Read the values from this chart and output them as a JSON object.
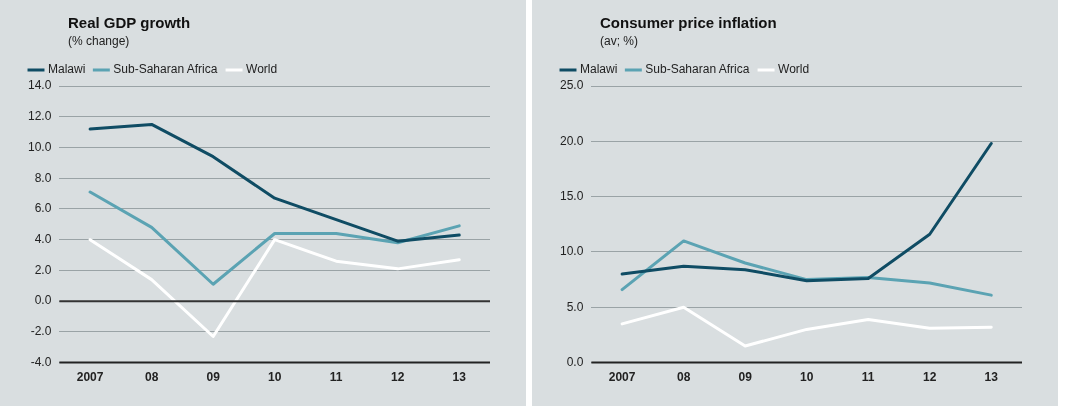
{
  "chart_data": [
    {
      "type": "line",
      "title": "Real GDP growth",
      "subtitle": "(% change)",
      "categories": [
        "2007",
        "08",
        "09",
        "10",
        "11",
        "12",
        "13"
      ],
      "series": [
        {
          "name": "Malawi",
          "color": "#0f4c64",
          "values": [
            11.2,
            11.5,
            9.4,
            6.7,
            5.3,
            3.9,
            4.3
          ]
        },
        {
          "name": "Sub-Saharan Africa",
          "color": "#5ba3b3",
          "values": [
            7.1,
            4.8,
            1.1,
            4.4,
            4.4,
            3.8,
            4.9
          ]
        },
        {
          "name": "World",
          "color": "#ffffff",
          "values": [
            4.0,
            1.4,
            -2.3,
            4.0,
            2.6,
            2.1,
            2.7
          ]
        }
      ],
      "ylim": [
        -4,
        14
      ],
      "yticks": [
        {
          "value": -4,
          "label": "-4.0"
        },
        {
          "value": -2,
          "label": "-2.0"
        },
        {
          "value": 0,
          "label": "0.0"
        },
        {
          "value": 2,
          "label": "2.0"
        },
        {
          "value": 4,
          "label": "4.0"
        },
        {
          "value": 6,
          "label": "6.0"
        },
        {
          "value": 8,
          "label": "8.0"
        },
        {
          "value": 10,
          "label": "10.0"
        },
        {
          "value": 12,
          "label": "12.0"
        },
        {
          "value": 14,
          "label": "14.0"
        }
      ],
      "ref_lines": [
        {
          "axis": "y",
          "value": 0,
          "color": "#333333"
        }
      ],
      "grid": "y",
      "legend": "top left",
      "marker": "none",
      "line_style": "solid"
    },
    {
      "type": "line",
      "title": "Consumer price inflation",
      "subtitle": "(av; %)",
      "categories": [
        "2007",
        "08",
        "09",
        "10",
        "11",
        "12",
        "13"
      ],
      "series": [
        {
          "name": "Malawi",
          "color": "#0f4c64",
          "values": [
            8.0,
            8.7,
            8.4,
            7.4,
            7.6,
            11.6,
            19.8
          ]
        },
        {
          "name": "Sub-Saharan Africa",
          "color": "#5ba3b3",
          "values": [
            6.6,
            11.0,
            9.0,
            7.5,
            7.7,
            7.2,
            6.1
          ]
        },
        {
          "name": "World",
          "color": "#ffffff",
          "values": [
            3.5,
            5.0,
            1.5,
            3.0,
            3.9,
            3.1,
            3.2
          ]
        }
      ],
      "ylim": [
        0,
        25
      ],
      "yticks": [
        {
          "value": 0,
          "label": "0.0"
        },
        {
          "value": 5,
          "label": "5.0"
        },
        {
          "value": 10,
          "label": "10.0"
        },
        {
          "value": 15,
          "label": "15.0"
        },
        {
          "value": 20,
          "label": "20.0"
        },
        {
          "value": 25,
          "label": "25.0"
        }
      ],
      "grid": "y",
      "legend": "top left",
      "marker": "none",
      "line_style": "solid"
    }
  ]
}
